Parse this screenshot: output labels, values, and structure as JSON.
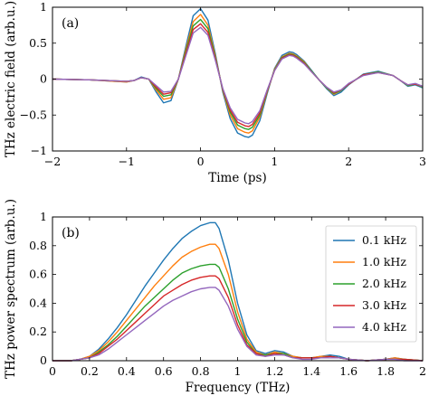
{
  "colors": {
    "s0": "#1f77b4",
    "s1": "#ff7f0e",
    "s2": "#2ca02c",
    "s3": "#d62728",
    "s4": "#9467bd",
    "axis": "#000000"
  },
  "chart_data": [
    {
      "type": "line",
      "panel_label": "(a)",
      "xlabel": "Time (ps)",
      "ylabel": "THz electric field (arb.u.)",
      "xlim": [
        -2,
        3
      ],
      "ylim": [
        -1,
        1
      ],
      "xticks": [
        -2,
        -1,
        0,
        1,
        2,
        3
      ],
      "xtick_labels": [
        "−2",
        "−1",
        "0",
        "1",
        "2",
        "3"
      ],
      "yticks": [
        -1,
        -0.5,
        0,
        0.5,
        1
      ],
      "ytick_labels": [
        "−1",
        "−0.5",
        "0",
        "0.5",
        "1"
      ],
      "x": [
        -2.0,
        -1.5,
        -1.0,
        -0.9,
        -0.8,
        -0.7,
        -0.6,
        -0.5,
        -0.4,
        -0.3,
        -0.2,
        -0.1,
        0.0,
        0.1,
        0.2,
        0.3,
        0.4,
        0.5,
        0.6,
        0.65,
        0.7,
        0.8,
        0.9,
        1.0,
        1.1,
        1.2,
        1.25,
        1.3,
        1.4,
        1.5,
        1.6,
        1.7,
        1.8,
        1.9,
        2.0,
        2.2,
        2.4,
        2.6,
        2.7,
        2.8,
        2.9,
        3.0
      ],
      "series": [
        {
          "values": [
            0.0,
            -0.01,
            -0.04,
            -0.02,
            0.03,
            0.0,
            -0.18,
            -0.33,
            -0.3,
            0.0,
            0.45,
            0.88,
            0.98,
            0.82,
            0.35,
            -0.18,
            -0.55,
            -0.75,
            -0.8,
            -0.81,
            -0.78,
            -0.58,
            -0.2,
            0.15,
            0.33,
            0.38,
            0.37,
            0.34,
            0.25,
            0.12,
            -0.01,
            -0.13,
            -0.23,
            -0.18,
            -0.08,
            0.07,
            0.11,
            0.05,
            -0.02,
            -0.1,
            -0.08,
            -0.12
          ]
        },
        {
          "values": [
            0.0,
            -0.01,
            -0.04,
            -0.02,
            0.02,
            0.0,
            -0.15,
            -0.28,
            -0.26,
            0.0,
            0.41,
            0.8,
            0.9,
            0.75,
            0.32,
            -0.16,
            -0.5,
            -0.69,
            -0.74,
            -0.75,
            -0.72,
            -0.53,
            -0.18,
            0.14,
            0.31,
            0.36,
            0.35,
            0.32,
            0.24,
            0.11,
            -0.01,
            -0.12,
            -0.21,
            -0.16,
            -0.07,
            0.06,
            0.1,
            0.05,
            -0.02,
            -0.09,
            -0.07,
            -0.11
          ]
        },
        {
          "values": [
            0.0,
            -0.01,
            -0.03,
            -0.02,
            0.02,
            0.0,
            -0.13,
            -0.24,
            -0.22,
            0.0,
            0.38,
            0.74,
            0.83,
            0.7,
            0.3,
            -0.15,
            -0.46,
            -0.64,
            -0.69,
            -0.7,
            -0.67,
            -0.5,
            -0.17,
            0.13,
            0.3,
            0.35,
            0.34,
            0.31,
            0.23,
            0.11,
            -0.01,
            -0.12,
            -0.2,
            -0.16,
            -0.07,
            0.06,
            0.1,
            0.05,
            -0.02,
            -0.09,
            -0.07,
            -0.11
          ]
        },
        {
          "values": [
            0.0,
            -0.01,
            -0.03,
            -0.02,
            0.02,
            0.0,
            -0.11,
            -0.21,
            -0.19,
            0.0,
            0.35,
            0.69,
            0.77,
            0.65,
            0.28,
            -0.14,
            -0.43,
            -0.6,
            -0.65,
            -0.66,
            -0.63,
            -0.47,
            -0.16,
            0.12,
            0.29,
            0.34,
            0.33,
            0.3,
            0.22,
            0.1,
            -0.01,
            -0.11,
            -0.19,
            -0.15,
            -0.07,
            0.06,
            0.09,
            0.05,
            -0.02,
            -0.08,
            -0.07,
            -0.1
          ]
        },
        {
          "values": [
            0.0,
            -0.01,
            -0.03,
            -0.02,
            0.02,
            0.0,
            -0.09,
            -0.18,
            -0.17,
            0.0,
            0.32,
            0.64,
            0.72,
            0.61,
            0.26,
            -0.13,
            -0.4,
            -0.56,
            -0.61,
            -0.62,
            -0.59,
            -0.44,
            -0.15,
            0.12,
            0.28,
            0.33,
            0.32,
            0.29,
            0.21,
            0.1,
            -0.01,
            -0.11,
            -0.18,
            -0.15,
            -0.06,
            0.05,
            0.09,
            0.05,
            -0.02,
            -0.08,
            -0.06,
            -0.1
          ]
        }
      ],
      "grid": false
    },
    {
      "type": "line",
      "panel_label": "(b)",
      "xlabel": "Frequency (THz)",
      "ylabel": "THz power spectrum (arb.u.)",
      "xlim": [
        0,
        2
      ],
      "ylim": [
        0,
        1
      ],
      "xticks": [
        0,
        0.2,
        0.4,
        0.6,
        0.8,
        1.0,
        1.2,
        1.4,
        1.6,
        1.8,
        2.0
      ],
      "xtick_labels": [
        "0",
        "0.2",
        "0.4",
        "0.6",
        "0.8",
        "1",
        "1.2",
        "1.4",
        "1.6",
        "1.8",
        "2"
      ],
      "yticks": [
        0,
        0.2,
        0.4,
        0.6,
        0.8,
        1
      ],
      "ytick_labels": [
        "0",
        "0.2",
        "0.4",
        "0.6",
        "0.8",
        "1"
      ],
      "x": [
        0.0,
        0.1,
        0.15,
        0.2,
        0.25,
        0.3,
        0.35,
        0.4,
        0.45,
        0.5,
        0.55,
        0.6,
        0.65,
        0.7,
        0.75,
        0.8,
        0.85,
        0.88,
        0.9,
        0.95,
        1.0,
        1.05,
        1.1,
        1.15,
        1.2,
        1.25,
        1.3,
        1.35,
        1.4,
        1.45,
        1.5,
        1.55,
        1.6,
        1.7,
        1.8,
        1.85,
        1.9,
        2.0
      ],
      "series": [
        {
          "name": "0.1 kHz",
          "values": [
            0.0,
            0.0,
            0.01,
            0.03,
            0.08,
            0.15,
            0.23,
            0.32,
            0.42,
            0.52,
            0.61,
            0.7,
            0.78,
            0.85,
            0.9,
            0.94,
            0.96,
            0.96,
            0.92,
            0.7,
            0.4,
            0.18,
            0.07,
            0.05,
            0.07,
            0.06,
            0.03,
            0.02,
            0.02,
            0.03,
            0.04,
            0.03,
            0.01,
            0.0,
            0.01,
            0.02,
            0.01,
            0.0
          ]
        },
        {
          "name": "1.0 kHz",
          "values": [
            0.0,
            0.0,
            0.01,
            0.03,
            0.07,
            0.13,
            0.2,
            0.28,
            0.36,
            0.44,
            0.52,
            0.59,
            0.66,
            0.72,
            0.76,
            0.79,
            0.81,
            0.81,
            0.78,
            0.6,
            0.34,
            0.15,
            0.06,
            0.04,
            0.06,
            0.05,
            0.03,
            0.02,
            0.02,
            0.03,
            0.03,
            0.02,
            0.01,
            0.0,
            0.01,
            0.02,
            0.01,
            0.0
          ]
        },
        {
          "name": "2.0 kHz",
          "values": [
            0.0,
            0.0,
            0.01,
            0.02,
            0.06,
            0.11,
            0.17,
            0.24,
            0.31,
            0.38,
            0.44,
            0.5,
            0.56,
            0.61,
            0.64,
            0.66,
            0.67,
            0.67,
            0.65,
            0.5,
            0.29,
            0.13,
            0.05,
            0.04,
            0.05,
            0.05,
            0.02,
            0.02,
            0.02,
            0.02,
            0.03,
            0.02,
            0.01,
            0.0,
            0.01,
            0.01,
            0.01,
            0.0
          ]
        },
        {
          "name": "3.0 kHz",
          "values": [
            0.0,
            0.0,
            0.01,
            0.02,
            0.05,
            0.1,
            0.15,
            0.21,
            0.27,
            0.33,
            0.39,
            0.45,
            0.49,
            0.53,
            0.56,
            0.58,
            0.59,
            0.59,
            0.57,
            0.44,
            0.25,
            0.11,
            0.05,
            0.03,
            0.05,
            0.04,
            0.02,
            0.02,
            0.02,
            0.02,
            0.03,
            0.02,
            0.01,
            0.0,
            0.01,
            0.01,
            0.01,
            0.0
          ]
        },
        {
          "name": "4.0 kHz",
          "values": [
            0.0,
            0.0,
            0.01,
            0.02,
            0.04,
            0.08,
            0.13,
            0.18,
            0.23,
            0.28,
            0.33,
            0.38,
            0.42,
            0.45,
            0.48,
            0.5,
            0.51,
            0.51,
            0.49,
            0.38,
            0.22,
            0.1,
            0.04,
            0.03,
            0.04,
            0.04,
            0.02,
            0.01,
            0.01,
            0.02,
            0.02,
            0.02,
            0.01,
            0.0,
            0.01,
            0.01,
            0.0,
            0.0
          ]
        }
      ],
      "legend": "top-right",
      "grid": false
    }
  ]
}
